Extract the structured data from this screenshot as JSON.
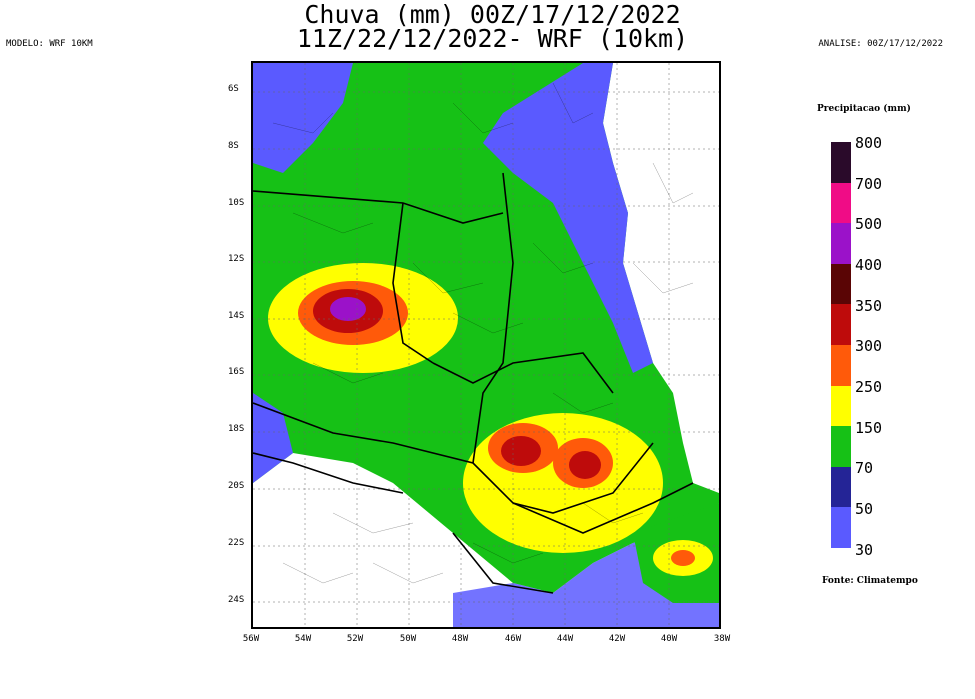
{
  "title_line1": "Chuva (mm) 00Z/17/12/2022",
  "title_line2": "11Z/22/12/2022- WRF (10km)",
  "model_label": "MODELO: WRF 10KM",
  "analysis_label": "ANALISE: 00Z/17/12/2022",
  "lat_ticks": [
    "6S",
    "8S",
    "10S",
    "12S",
    "14S",
    "16S",
    "18S",
    "20S",
    "22S",
    "24S"
  ],
  "lon_ticks": [
    "56W",
    "54W",
    "52W",
    "50W",
    "48W",
    "46W",
    "44W",
    "42W",
    "40W",
    "38W"
  ],
  "legend": {
    "title": "Precipitacao (mm)",
    "levels": [
      {
        "label": "800",
        "color": "#2a0a2a"
      },
      {
        "label": "700",
        "color": "#f00c86"
      },
      {
        "label": "500",
        "color": "#9b12c9"
      },
      {
        "label": "400",
        "color": "#5a0505"
      },
      {
        "label": "350",
        "color": "#be0b0b"
      },
      {
        "label": "300",
        "color": "#ff5a0a"
      },
      {
        "label": "250",
        "color": "#ffff00"
      },
      {
        "label": "150",
        "color": "#16c116"
      },
      {
        "label": "70",
        "color": "#242496"
      },
      {
        "label": "50",
        "color": "#5a5aff"
      },
      {
        "label": "30",
        "color": ""
      }
    ]
  },
  "source": "Fonte: Climatempo"
}
